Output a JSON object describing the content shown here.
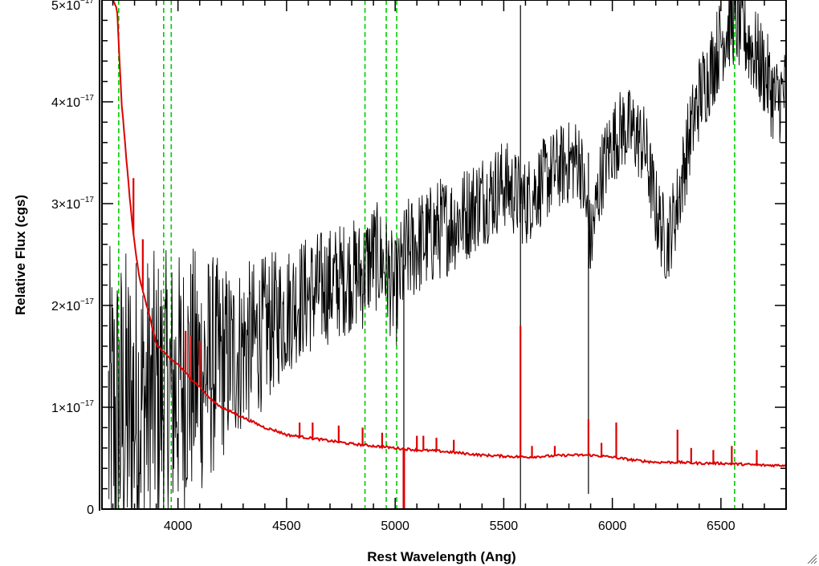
{
  "chart_data": {
    "type": "line",
    "xlabel": "Rest Wavelength (Ang)",
    "ylabel": "Relative Flux (cgs)",
    "xlim": [
      3650,
      6800
    ],
    "ylim": [
      0,
      5e-17
    ],
    "x_ticks": [
      4000,
      4500,
      5000,
      5500,
      6000,
      6500
    ],
    "x_tick_labels": [
      "4000",
      "4500",
      "5000",
      "5500",
      "6000",
      "6500"
    ],
    "y_ticks": [
      0,
      1e-17,
      2e-17,
      3e-17,
      4e-17,
      5e-17
    ],
    "y_tick_labels": [
      {
        "mant": "0",
        "exp": ""
      },
      {
        "mant": "1×10",
        "exp": "−17"
      },
      {
        "mant": "2×10",
        "exp": "−17"
      },
      {
        "mant": "3×10",
        "exp": "−17"
      },
      {
        "mant": "4×10",
        "exp": "−17"
      },
      {
        "mant": "5×10",
        "exp": "−17"
      }
    ],
    "grid": false,
    "colors": {
      "spectrum": "#000000",
      "error": "#dd0000",
      "marker_lines": "#00cc00"
    },
    "marker_lines_x": [
      3727,
      3934,
      3969,
      4861,
      4959,
      5007,
      6563
    ],
    "series": [
      {
        "role": "spectrum",
        "color": "#000000",
        "x": [
          3700,
          3750,
          3800,
          3850,
          3900,
          3950,
          4000,
          4050,
          4100,
          4150,
          4200,
          4250,
          4300,
          4350,
          4400,
          4450,
          4500,
          4550,
          4600,
          4650,
          4700,
          4750,
          4800,
          4850,
          4900,
          4950,
          5000,
          5050,
          5100,
          5150,
          5200,
          5250,
          5300,
          5350,
          5400,
          5450,
          5500,
          5550,
          5600,
          5650,
          5700,
          5750,
          5800,
          5850,
          5900,
          5950,
          6000,
          6050,
          6100,
          6150,
          6200,
          6250,
          6300,
          6350,
          6400,
          6450,
          6500,
          6550,
          6600,
          6650,
          6700,
          6750,
          6800
        ],
        "y": [
          8e-18,
          9e-18,
          1e-17,
          1.05e-17,
          1.1e-17,
          1.15e-17,
          1.2e-17,
          1.3e-17,
          1.35e-17,
          1.4e-17,
          1.45e-17,
          1.5e-17,
          1.6e-17,
          1.65e-17,
          1.75e-17,
          1.85e-17,
          1.95e-17,
          2.05e-17,
          2.1e-17,
          2.15e-17,
          2.2e-17,
          2.25e-17,
          2.3e-17,
          2.3e-17,
          2.5e-17,
          2.4e-17,
          2.1e-17,
          2.5e-17,
          2.6e-17,
          2.65e-17,
          2.75e-17,
          2.8e-17,
          2.85e-17,
          2.95e-17,
          3.05e-17,
          3.1e-17,
          3.2e-17,
          3.1e-17,
          3e-17,
          3.15e-17,
          3.25e-17,
          3.35e-17,
          3.4e-17,
          3.45e-17,
          2.6e-17,
          3.3e-17,
          3.6e-17,
          3.75e-17,
          3.7e-17,
          3.55e-17,
          2.95e-17,
          2.6e-17,
          3e-17,
          3.6e-17,
          4.05e-17,
          4.3e-17,
          4.6e-17,
          4.8e-17,
          4.7e-17,
          4.5e-17,
          4.3e-17,
          4e-17,
          4.1e-17
        ],
        "noise": [
          1.8e-17,
          1.7e-17,
          1.6e-17,
          1.5e-17,
          1.45e-17,
          1.4e-17,
          1.35e-17,
          1.3e-17,
          1.25e-17,
          1.15e-17,
          1e-17,
          9e-18,
          8.5e-18,
          8e-18,
          7.5e-18,
          7e-18,
          6.5e-18,
          6.2e-18,
          6e-18,
          6e-18,
          5.8e-18,
          5.8e-18,
          5.6e-18,
          5.6e-18,
          5.5e-18,
          5.5e-18,
          5.5e-18,
          5.5e-18,
          5.3e-18,
          5.2e-18,
          5.2e-18,
          5e-18,
          5e-18,
          4.8e-18,
          4.8e-18,
          4.6e-18,
          4.5e-18,
          4.4e-18,
          4.4e-18,
          4.3e-18,
          4.3e-18,
          4.2e-18,
          4.2e-18,
          4.2e-18,
          4.2e-18,
          4.2e-18,
          4.2e-18,
          4.2e-18,
          4.2e-18,
          4.2e-18,
          4.2e-18,
          4.2e-18,
          4.2e-18,
          4.4e-18,
          4.4e-18,
          4.4e-18,
          4.5e-18,
          4.5e-18,
          4.5e-18,
          4.6e-18,
          4.6e-18,
          4.6e-18,
          4.6e-18
        ],
        "spikes": [
          {
            "x": 5577,
            "top": 4.95e-17,
            "bottom": 0
          },
          {
            "x": 5890,
            "top": 3.5e-17,
            "bottom": 1.5e-18
          },
          {
            "x": 5040,
            "top": 2.4e-17,
            "bottom": 0
          }
        ]
      },
      {
        "role": "error",
        "color": "#dd0000",
        "x": [
          3700,
          3720,
          3740,
          3760,
          3780,
          3800,
          3820,
          3850,
          3880,
          3900,
          3950,
          4000,
          4050,
          4100,
          4150,
          4200,
          4250,
          4300,
          4350,
          4400,
          4450,
          4500,
          4600,
          4700,
          4800,
          4900,
          5000,
          5100,
          5200,
          5300,
          5400,
          5500,
          5600,
          5700,
          5800,
          5900,
          6000,
          6100,
          6200,
          6300,
          6400,
          6500,
          6600,
          6700,
          6800
        ],
        "y": [
          5e-17,
          4.9e-17,
          4e-17,
          3.5e-17,
          3e-17,
          2.6e-17,
          2.3e-17,
          2.05e-17,
          1.8e-17,
          1.62e-17,
          1.5e-17,
          1.42e-17,
          1.3e-17,
          1.2e-17,
          1.08e-17,
          1e-17,
          9.5e-18,
          9e-18,
          8.5e-18,
          8e-18,
          7.7e-18,
          7.3e-18,
          7e-18,
          6.7e-18,
          6.4e-18,
          6.2e-18,
          6e-18,
          5.8e-18,
          5.7e-18,
          5.5e-18,
          5.3e-18,
          5.2e-18,
          5.1e-18,
          5.2e-18,
          5.3e-18,
          5.3e-18,
          5.1e-18,
          4.8e-18,
          4.6e-18,
          4.6e-18,
          4.5e-18,
          4.5e-18,
          4.4e-18,
          4.3e-18,
          4.3e-18
        ],
        "spikes": [
          {
            "x": 3795,
            "top": 3.25e-17
          },
          {
            "x": 3838,
            "top": 2.65e-17
          },
          {
            "x": 4035,
            "top": 1.75e-17
          },
          {
            "x": 4060,
            "top": 1.7e-17
          },
          {
            "x": 4100,
            "top": 1.65e-17
          },
          {
            "x": 4560,
            "top": 8.5e-18
          },
          {
            "x": 4620,
            "top": 8.5e-18
          },
          {
            "x": 4740,
            "top": 8.2e-18
          },
          {
            "x": 4850,
            "top": 8e-18
          },
          {
            "x": 4940,
            "top": 7.5e-18
          },
          {
            "x": 5100,
            "top": 7.2e-18
          },
          {
            "x": 5130,
            "top": 7.2e-18
          },
          {
            "x": 5190,
            "top": 7e-18
          },
          {
            "x": 5270,
            "top": 6.8e-18
          },
          {
            "x": 5577,
            "top": 1.8e-17
          },
          {
            "x": 5630,
            "top": 6.2e-18
          },
          {
            "x": 5735,
            "top": 6.2e-18
          },
          {
            "x": 5890,
            "top": 8.8e-18
          },
          {
            "x": 5950,
            "top": 6.5e-18
          },
          {
            "x": 6018,
            "top": 8.5e-18
          },
          {
            "x": 6300,
            "top": 7.8e-18
          },
          {
            "x": 6363,
            "top": 6e-18
          },
          {
            "x": 6465,
            "top": 5.8e-18
          },
          {
            "x": 6550,
            "top": 6.2e-18
          },
          {
            "x": 6665,
            "top": 5.8e-18
          }
        ],
        "dip": {
          "x": 5040,
          "bottom": 0
        }
      }
    ]
  }
}
